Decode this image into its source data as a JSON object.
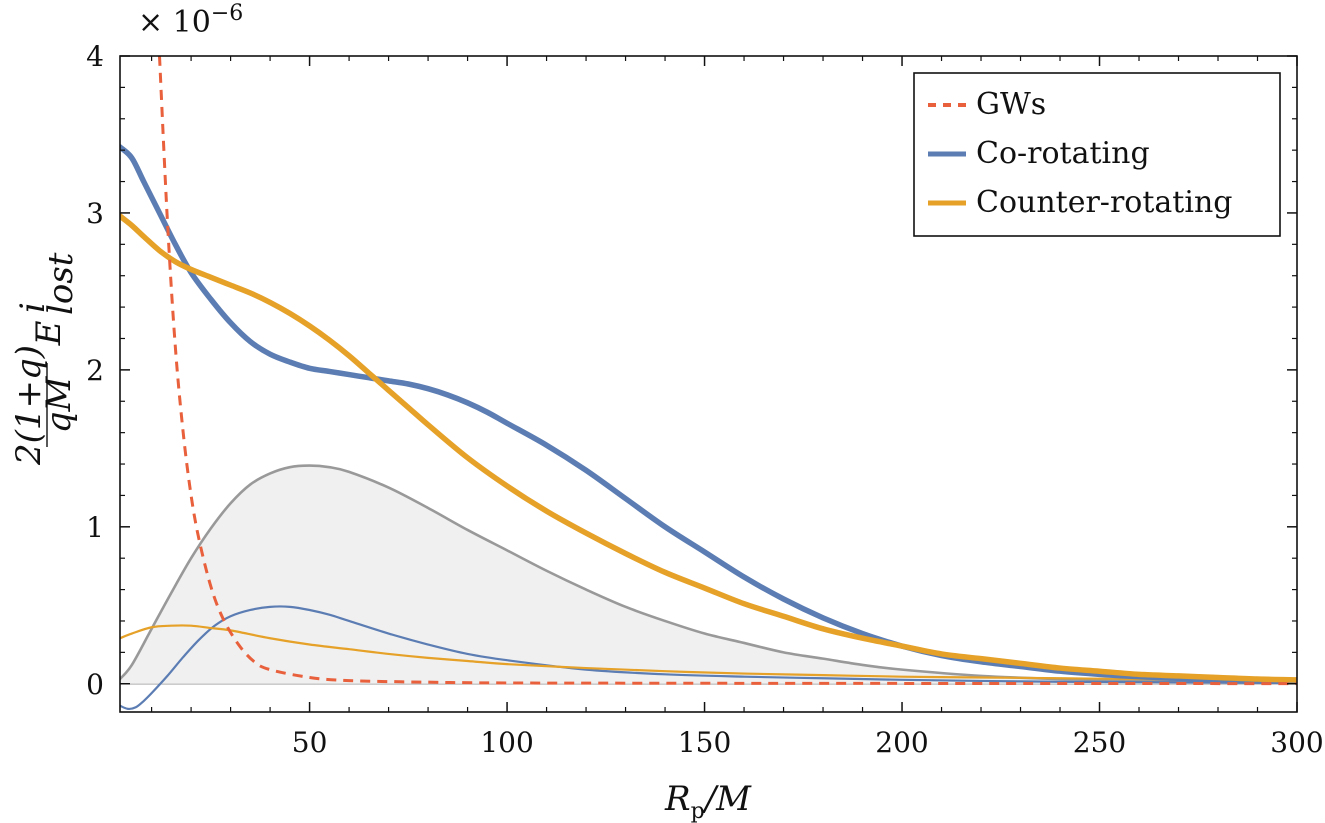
{
  "chart_data": {
    "type": "line",
    "xlabel": "R_p/M",
    "ylabel": "2(1+q)/(qM) E^i_lost",
    "y_multiplier": "× 10^−6",
    "xlim": [
      2,
      300
    ],
    "ylim": [
      -0.18,
      4.0
    ],
    "xticks": [
      50,
      100,
      150,
      200,
      250,
      300
    ],
    "yticks": [
      0,
      1,
      2,
      3,
      4
    ],
    "grid": false,
    "legend_position": "top-right",
    "colors": {
      "gws": "#e8603c",
      "co": "#5b7db3",
      "counter": "#e5a128",
      "gray": "#999999",
      "fill": "#f0f0f0"
    },
    "series": [
      {
        "name": "GWs",
        "style": "dashed",
        "color": "#e8603c",
        "legend": true,
        "x": [
          12,
          14,
          16,
          18,
          20,
          22,
          25,
          28,
          32,
          36,
          40,
          50,
          60,
          80,
          100,
          150,
          200,
          300
        ],
        "y": [
          4.0,
          2.95,
          2.15,
          1.6,
          1.2,
          0.92,
          0.62,
          0.42,
          0.25,
          0.14,
          0.09,
          0.04,
          0.02,
          0.01,
          0.005,
          0.003,
          0.002,
          0.001
        ]
      },
      {
        "name": "Co-rotating",
        "style": "thick",
        "color": "#5b7db3",
        "legend": true,
        "x": [
          2,
          5,
          8,
          12,
          16,
          20,
          25,
          30,
          35,
          40,
          45,
          50,
          55,
          60,
          65,
          70,
          75,
          80,
          85,
          90,
          95,
          100,
          110,
          120,
          130,
          140,
          150,
          160,
          170,
          180,
          190,
          200,
          210,
          220,
          230,
          240,
          250,
          260,
          270,
          280,
          290,
          300
        ],
        "y": [
          3.42,
          3.35,
          3.2,
          3.0,
          2.8,
          2.62,
          2.45,
          2.3,
          2.18,
          2.1,
          2.05,
          2.01,
          1.99,
          1.97,
          1.95,
          1.93,
          1.91,
          1.88,
          1.84,
          1.79,
          1.73,
          1.66,
          1.52,
          1.36,
          1.18,
          1.0,
          0.84,
          0.68,
          0.54,
          0.42,
          0.32,
          0.24,
          0.18,
          0.14,
          0.11,
          0.08,
          0.06,
          0.045,
          0.035,
          0.027,
          0.02,
          0.015
        ]
      },
      {
        "name": "Counter-rotating",
        "style": "thick",
        "color": "#e5a128",
        "legend": true,
        "x": [
          2,
          5,
          8,
          12,
          16,
          20,
          25,
          30,
          35,
          40,
          45,
          50,
          55,
          60,
          65,
          70,
          75,
          80,
          90,
          100,
          110,
          120,
          130,
          140,
          150,
          160,
          170,
          180,
          190,
          200,
          210,
          220,
          230,
          240,
          250,
          260,
          270,
          280,
          290,
          300
        ],
        "y": [
          2.98,
          2.92,
          2.85,
          2.76,
          2.69,
          2.64,
          2.59,
          2.54,
          2.49,
          2.43,
          2.36,
          2.28,
          2.19,
          2.09,
          1.98,
          1.87,
          1.76,
          1.65,
          1.44,
          1.26,
          1.1,
          0.96,
          0.83,
          0.71,
          0.61,
          0.51,
          0.43,
          0.35,
          0.29,
          0.24,
          0.19,
          0.16,
          0.13,
          0.1,
          0.08,
          0.06,
          0.05,
          0.04,
          0.03,
          0.025
        ]
      },
      {
        "name": "",
        "style": "thin-fill",
        "color": "#999999",
        "legend": false,
        "x": [
          2,
          5,
          10,
          15,
          20,
          25,
          30,
          35,
          40,
          45,
          50,
          55,
          60,
          70,
          80,
          90,
          100,
          110,
          120,
          130,
          140,
          150,
          160,
          170,
          180,
          190,
          200,
          220,
          240,
          260,
          280,
          300
        ],
        "y": [
          0.03,
          0.12,
          0.35,
          0.58,
          0.8,
          0.99,
          1.15,
          1.27,
          1.34,
          1.38,
          1.39,
          1.38,
          1.35,
          1.25,
          1.12,
          0.98,
          0.85,
          0.72,
          0.6,
          0.49,
          0.4,
          0.32,
          0.26,
          0.2,
          0.16,
          0.12,
          0.09,
          0.05,
          0.03,
          0.02,
          0.01,
          0.005
        ]
      },
      {
        "name": "",
        "style": "thin",
        "color": "#5b7db3",
        "legend": false,
        "x": [
          2,
          4,
          6,
          8,
          10,
          14,
          18,
          22,
          26,
          30,
          35,
          40,
          45,
          50,
          55,
          60,
          70,
          80,
          90,
          100,
          120,
          140,
          160,
          180,
          200,
          230,
          260,
          300
        ],
        "y": [
          -0.14,
          -0.16,
          -0.15,
          -0.11,
          -0.06,
          0.05,
          0.17,
          0.28,
          0.37,
          0.43,
          0.47,
          0.49,
          0.49,
          0.47,
          0.44,
          0.4,
          0.32,
          0.25,
          0.19,
          0.15,
          0.09,
          0.06,
          0.045,
          0.035,
          0.025,
          0.015,
          0.01,
          0.005
        ]
      },
      {
        "name": "",
        "style": "thin",
        "color": "#e5a128",
        "legend": false,
        "x": [
          2,
          5,
          10,
          15,
          20,
          25,
          30,
          40,
          50,
          60,
          70,
          80,
          90,
          100,
          120,
          140,
          160,
          180,
          200,
          220,
          240,
          260,
          280,
          300
        ],
        "y": [
          0.29,
          0.32,
          0.36,
          0.37,
          0.37,
          0.355,
          0.34,
          0.29,
          0.25,
          0.22,
          0.19,
          0.165,
          0.145,
          0.125,
          0.1,
          0.08,
          0.065,
          0.055,
          0.045,
          0.04,
          0.035,
          0.03,
          0.027,
          0.025
        ]
      }
    ]
  }
}
